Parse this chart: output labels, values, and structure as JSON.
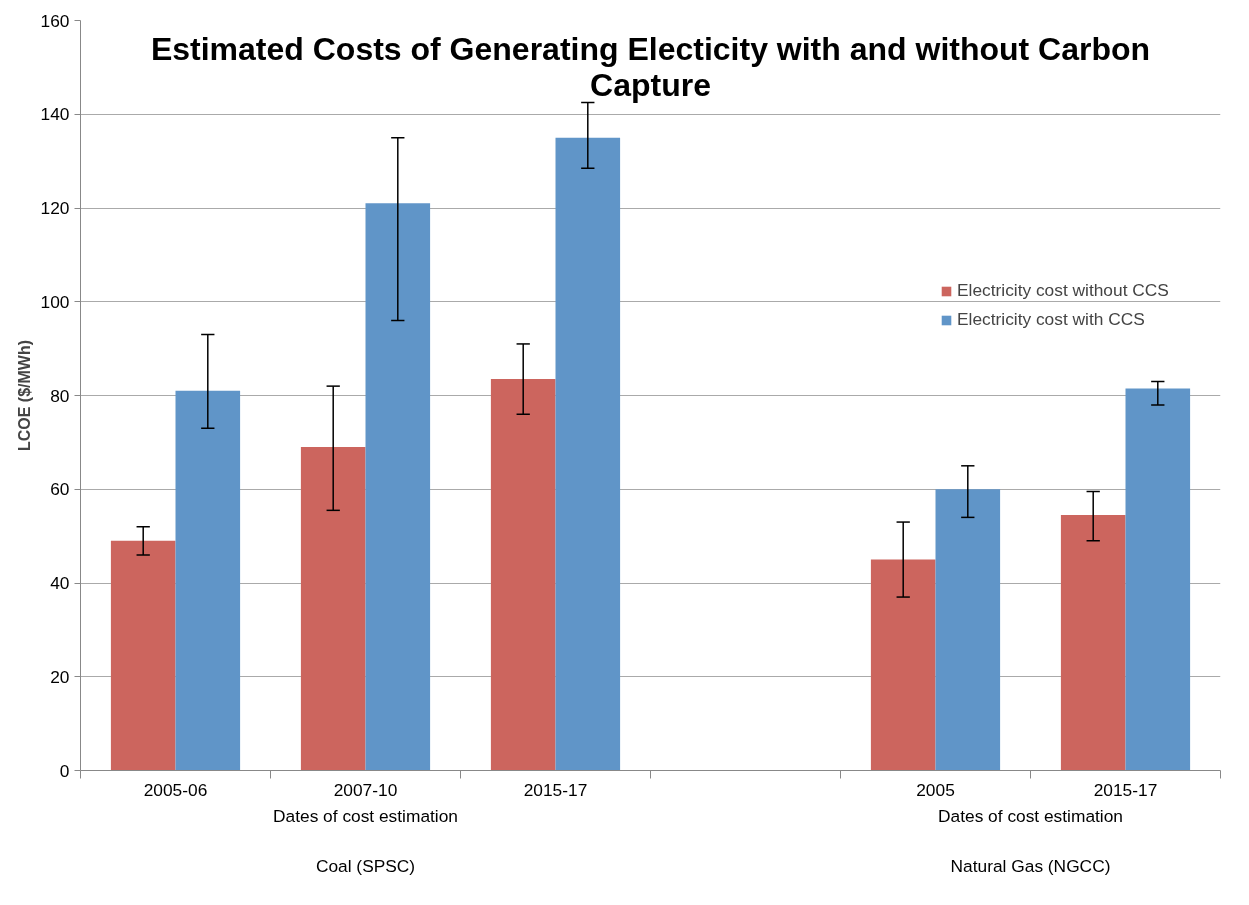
{
  "chart_data": {
    "type": "bar",
    "title": "Estimated Costs of Generating Electicity with and without Carbon Capture",
    "ylabel": "LCOE ($/MWh)",
    "categories": [
      "2005-06",
      "2007-10",
      "2015-17",
      null,
      "2005",
      "2015-17"
    ],
    "series": [
      {
        "name": "Electricity cost without CCS",
        "color": "#cc655e",
        "values": [
          49,
          69,
          83.5,
          null,
          45,
          54.5
        ],
        "errors": [
          [
            46,
            52
          ],
          [
            55.5,
            82
          ],
          [
            76,
            91
          ],
          null,
          [
            37,
            53
          ],
          [
            49,
            59.5
          ]
        ]
      },
      {
        "name": "Electricity cost with CCS",
        "color": "#6095c8",
        "values": [
          81,
          121,
          135,
          null,
          60,
          81.5
        ],
        "errors": [
          [
            73,
            93
          ],
          [
            96,
            135
          ],
          [
            128.5,
            142.5
          ],
          null,
          [
            54,
            65
          ],
          [
            78,
            83
          ]
        ]
      }
    ],
    "annotations": [
      "Dates of cost estimation",
      "Dates of cost estimation",
      "Coal (SPSC)",
      "Natural Gas (NGCC)"
    ],
    "ylim": [
      0,
      160
    ],
    "yticks": [
      0,
      20,
      40,
      60,
      80,
      100,
      120,
      140,
      160
    ],
    "grid": "y",
    "legend": "right"
  }
}
